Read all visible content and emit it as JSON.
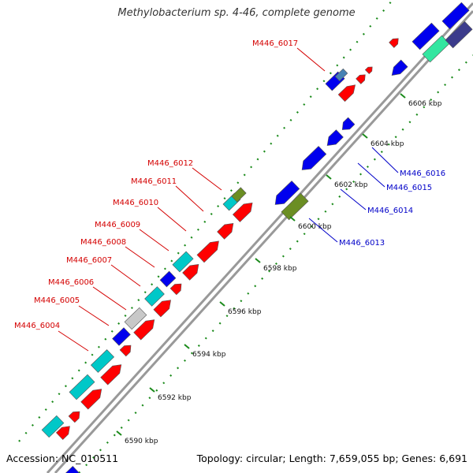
{
  "title": "Methylobacterium sp. 4-46, complete genome",
  "footer": {
    "accession": "Accession: NC_010511",
    "summary": "Topology: circular; Length: 7,659,055 bp; Genes: 6,691"
  },
  "colors": {
    "forward_label": "#d40000",
    "reverse_label": "#0000c8",
    "gene_red": "#ff0000",
    "gene_blue": "#0000ee",
    "gene_cyan": "#00c8c8",
    "gene_olive": "#6b8e23",
    "gene_gray": "#c8c8c8",
    "gene_steel": "#4682b4",
    "gene_green": "#33e6a0",
    "gene_navy": "#3c3c8c",
    "backbone": "#999999",
    "tick_dots": "#1a8a1a"
  },
  "ticks": [
    "6590 kbp",
    "6592 kbp",
    "6594 kbp",
    "6596 kbp",
    "6598 kbp",
    "6600 kbp",
    "6602 kbp",
    "6604 kbp",
    "6606 kbp"
  ],
  "forward_labels": [
    "M446_6004",
    "M446_6005",
    "M446_6006",
    "M446_6007",
    "M446_6008",
    "M446_6009",
    "M446_6010",
    "M446_6011",
    "M446_6012",
    "M446_6017"
  ],
  "reverse_labels": [
    "M446_6013",
    "M446_6014",
    "M446_6015",
    "M446_6016"
  ]
}
